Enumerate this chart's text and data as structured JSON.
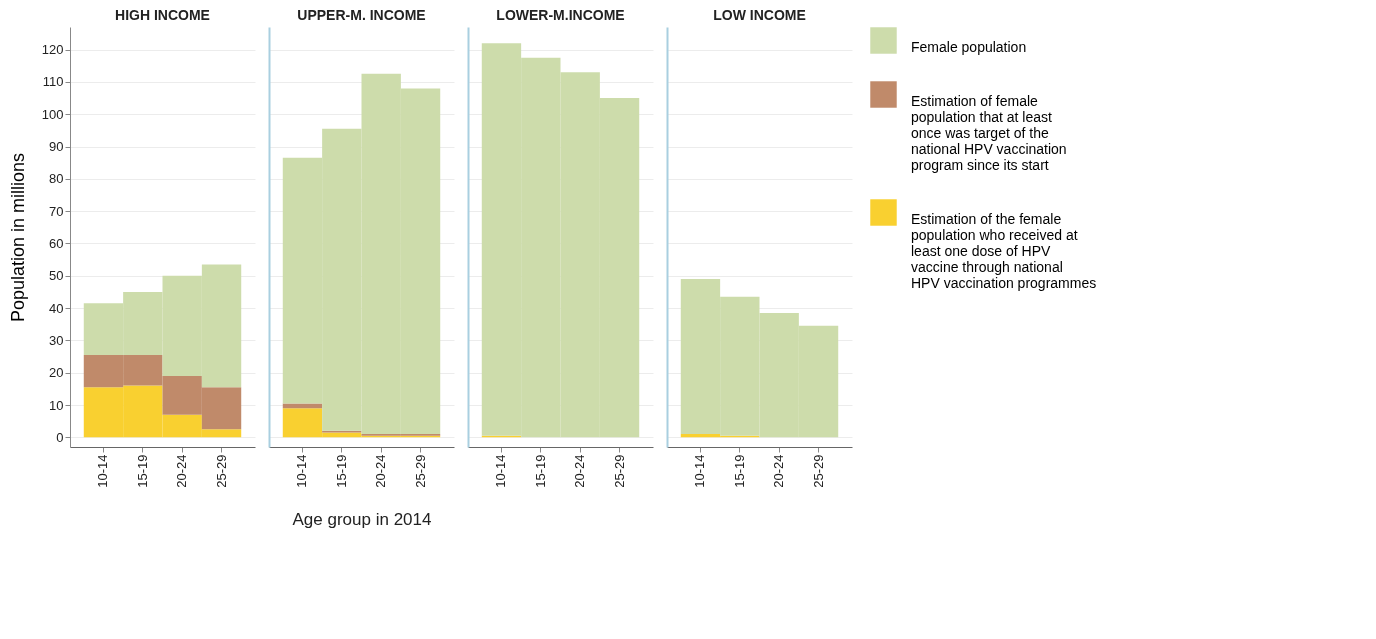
{
  "chart_data": [
    {
      "type": "bar",
      "title": "HIGH INCOME",
      "ylabel": "Population in millions",
      "categories": [
        "10-14",
        "15-19",
        "20-24",
        "25-29"
      ],
      "stacked": true,
      "ylim": [
        -3,
        127
      ],
      "yticks": [
        0,
        10,
        20,
        30,
        40,
        50,
        60,
        70,
        80,
        90,
        100,
        110,
        120
      ],
      "grid": "y",
      "series": [
        {
          "color": "#f9d030",
          "values": [
            15.5,
            16,
            7,
            2.5
          ]
        },
        {
          "color": "#c08a6a",
          "values": [
            10,
            9.5,
            12,
            13
          ]
        },
        {
          "color": "#cddcab",
          "values": [
            16,
            19.5,
            31,
            38
          ]
        }
      ]
    },
    {
      "type": "bar",
      "title": "UPPER-M. INCOME",
      "xlabel": "Age group in 2014",
      "categories": [
        "10-14",
        "15-19",
        "20-24",
        "25-29"
      ],
      "stacked": true,
      "ylim": [
        -3,
        127
      ],
      "yticks": [
        0,
        10,
        20,
        30,
        40,
        50,
        60,
        70,
        80,
        90,
        100,
        110,
        120
      ],
      "grid": "y",
      "tick_labels": "x",
      "series": [
        {
          "color": "#f9d030",
          "values": [
            9,
            1.5,
            0.5,
            0.5
          ]
        },
        {
          "color": "#c08a6a",
          "values": [
            1.5,
            0.5,
            0.5,
            0.5
          ]
        },
        {
          "color": "#cddcab",
          "values": [
            76,
            93.5,
            111.5,
            107
          ]
        }
      ]
    },
    {
      "type": "bar",
      "title": "LOWER-M.INCOME",
      "categories": [
        "10-14",
        "15-19",
        "20-24",
        "25-29"
      ],
      "stacked": true,
      "ylim": [
        -3,
        127
      ],
      "yticks": [
        0,
        10,
        20,
        30,
        40,
        50,
        60,
        70,
        80,
        90,
        100,
        110,
        120
      ],
      "grid": "y",
      "tick_labels": "x",
      "series": [
        {
          "color": "#f9d030",
          "values": [
            0.5,
            0,
            0,
            0
          ]
        },
        {
          "color": "#c08a6a",
          "values": [
            0,
            0,
            0,
            0
          ]
        },
        {
          "color": "#cddcab",
          "values": [
            121.5,
            117.5,
            113,
            105
          ]
        }
      ]
    },
    {
      "type": "bar",
      "title": "LOW INCOME",
      "categories": [
        "10-14",
        "15-19",
        "20-24",
        "25-29"
      ],
      "stacked": true,
      "ylim": [
        -3,
        127
      ],
      "yticks": [
        0,
        10,
        20,
        30,
        40,
        50,
        60,
        70,
        80,
        90,
        100,
        110,
        120
      ],
      "grid": "y",
      "tick_labels": "x",
      "legend": "right",
      "series": [
        {
          "name": "Estimation of the female population who received at least one dose of HPV vaccine through national HPV vaccination programmes",
          "color": "#f9d030",
          "values": [
            1,
            0.5,
            0,
            0
          ]
        },
        {
          "name": "Estimation of female population that at least once was target of the national HPV vaccination program since its start",
          "color": "#c08a6a",
          "values": [
            0,
            0,
            0,
            0
          ]
        },
        {
          "name": "Female population",
          "color": "#cddcab",
          "values": [
            48,
            43,
            38.5,
            34.5
          ]
        }
      ]
    }
  ]
}
